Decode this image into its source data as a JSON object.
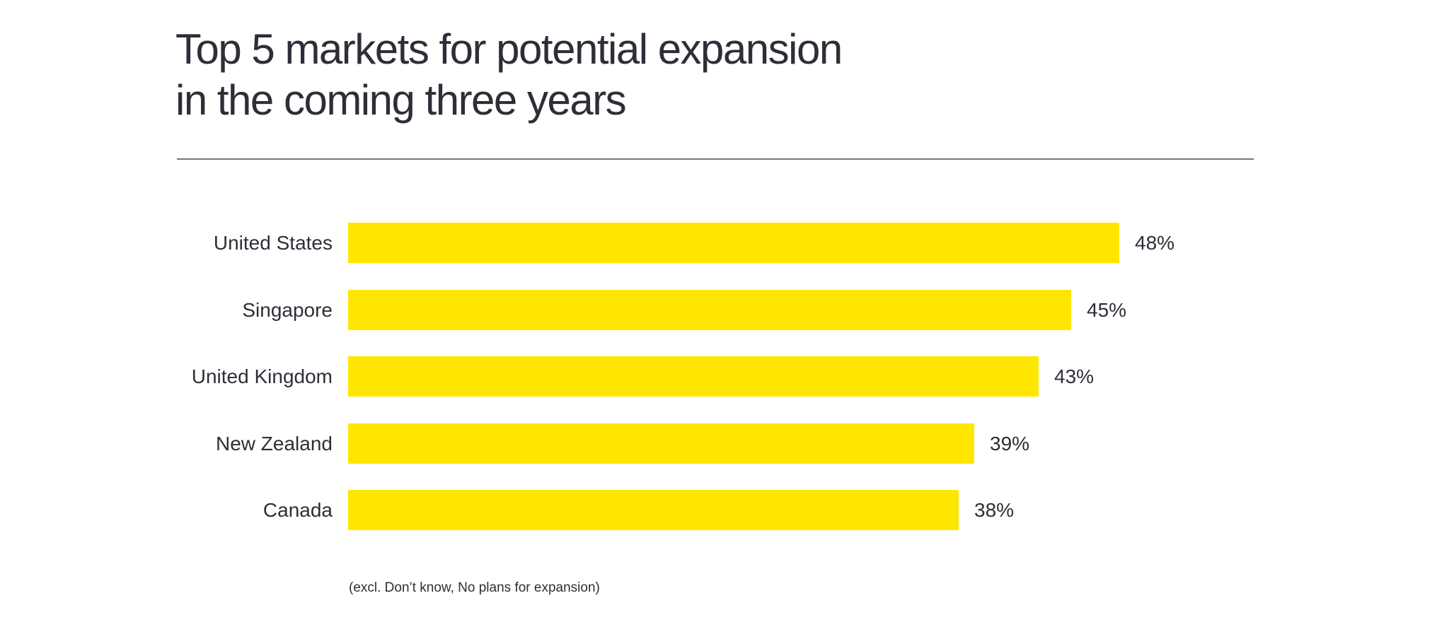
{
  "page": {
    "background": "#FFFFFF"
  },
  "colors": {
    "bar": "#FFE600",
    "text": "#2E2E38",
    "divider": "#75757F"
  },
  "chart_data": {
    "type": "bar",
    "orientation": "horizontal",
    "title": "Top 5 markets for potential expansion in the coming three years",
    "title_lines": [
      "Top 5 markets for potential expansion",
      "in the coming three years"
    ],
    "categories": [
      "United States",
      "Singapore",
      "United Kingdom",
      "New Zealand",
      "Canada"
    ],
    "values": [
      48,
      45,
      43,
      39,
      38
    ],
    "value_labels": [
      "48%",
      "45%",
      "43%",
      "39%",
      "38%"
    ],
    "unit": "%",
    "xlim": [
      0,
      50
    ],
    "grid": false,
    "legend": false,
    "bar_color": "#FFE600",
    "footnote": "(excl. Don’t know, No plans for expansion)"
  }
}
